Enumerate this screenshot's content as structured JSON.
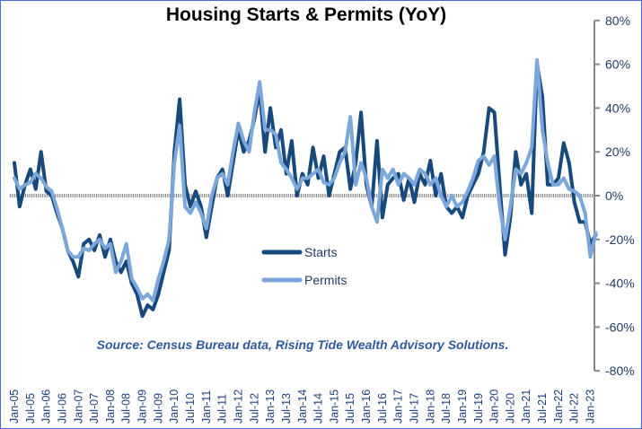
{
  "chart_data": {
    "type": "line",
    "title": "Housing Starts & Permits (YoY)",
    "xlabel": "",
    "ylabel": "",
    "y_axis_side": "right",
    "ylim": [
      -80,
      80
    ],
    "y_ticks": [
      80,
      60,
      40,
      20,
      0,
      -20,
      -40,
      -60,
      -80
    ],
    "y_tick_labels": [
      "80%",
      "60%",
      "40%",
      "20%",
      "0%",
      "-20%",
      "-40%",
      "-60%",
      "-80%"
    ],
    "x_tick_labels": [
      "Jan-05",
      "Jul-05",
      "Jan-06",
      "Jul-06",
      "Jan-07",
      "Jul-07",
      "Jan-08",
      "Jul-08",
      "Jan-09",
      "Jul-09",
      "Jan-10",
      "Jul-10",
      "Jan-11",
      "Jul-11",
      "Jan-12",
      "Jul-12",
      "Jan-13",
      "Jul-13",
      "Jan-14",
      "Jul-14",
      "Jan-15",
      "Jul-15",
      "Jan-16",
      "Jul-16",
      "Jan-17",
      "Jul-17",
      "Jan-18",
      "Jul-18",
      "Jan-19",
      "Jul-19",
      "Jan-20",
      "Jul-20",
      "Jan-21",
      "Jul-21",
      "Jan-22",
      "Jul-22",
      "Jan-23"
    ],
    "x_start": "Jan-05",
    "x_step_months": 2,
    "zero_line": "dotted",
    "legend_position": "center",
    "annotation": "Source: Census Bureau data, Rising Tide Wealth Advisory Solutions.",
    "series": [
      {
        "name": "Starts",
        "color": "#17497d",
        "values": [
          15,
          -5,
          5,
          12,
          3,
          20,
          2,
          0,
          -8,
          -15,
          -25,
          -30,
          -37,
          -22,
          -20,
          -25,
          -18,
          -28,
          -20,
          -30,
          -35,
          -30,
          -40,
          -45,
          -55,
          -50,
          -52,
          -45,
          -35,
          -25,
          20,
          44,
          5,
          -5,
          2,
          -5,
          -19,
          -5,
          8,
          12,
          0,
          15,
          30,
          20,
          25,
          35,
          48,
          20,
          40,
          22,
          30,
          10,
          25,
          0,
          10,
          5,
          22,
          8,
          18,
          0,
          10,
          20,
          22,
          3,
          15,
          38,
          5,
          -5,
          25,
          -10,
          5,
          8,
          10,
          -2,
          8,
          -3,
          10,
          5,
          16,
          0,
          10,
          -5,
          -8,
          -5,
          -10,
          0,
          5,
          10,
          20,
          40,
          38,
          5,
          -27,
          -10,
          20,
          5,
          10,
          -8,
          60,
          45,
          5,
          5,
          8,
          24,
          15,
          -3,
          -12,
          -12,
          -22,
          -18
        ]
      },
      {
        "name": "Permits",
        "color": "#7ba7db",
        "values": [
          8,
          3,
          5,
          6,
          10,
          8,
          4,
          2,
          -6,
          -15,
          -25,
          -28,
          -28,
          -24,
          -25,
          -22,
          -20,
          -24,
          -22,
          -35,
          -30,
          -22,
          -38,
          -42,
          -47,
          -45,
          -48,
          -38,
          -30,
          -20,
          15,
          32,
          -5,
          -8,
          -3,
          -8,
          -15,
          0,
          8,
          10,
          5,
          20,
          33,
          25,
          20,
          38,
          52,
          30,
          30,
          28,
          15,
          12,
          8,
          3,
          8,
          8,
          10,
          12,
          6,
          5,
          8,
          15,
          20,
          36,
          5,
          15,
          8,
          -5,
          -12,
          12,
          8,
          12,
          5,
          10,
          8,
          5,
          12,
          10,
          5,
          8,
          0,
          -5,
          0,
          -5,
          -3,
          2,
          8,
          16,
          18,
          14,
          18,
          -5,
          -20,
          -5,
          12,
          10,
          15,
          22,
          62,
          30,
          15,
          5,
          5,
          8,
          3,
          2,
          0,
          -8,
          -28,
          -17
        ]
      }
    ]
  }
}
